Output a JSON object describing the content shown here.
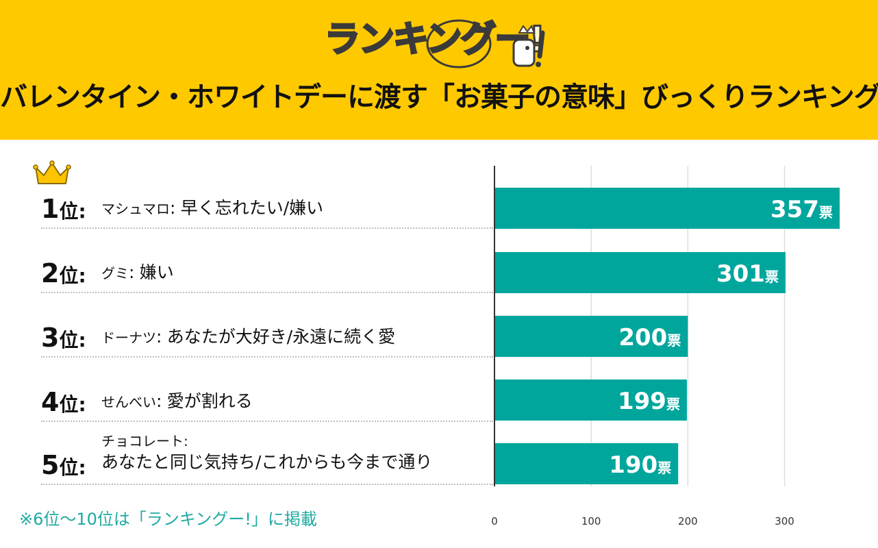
{
  "header": {
    "logo_text": "ランキングー!",
    "title": "バレンタイン・ホワイトデーに渡す「お菓子の意味」びっくりランキング"
  },
  "ranks": [
    {
      "rank": "1",
      "suffix": "位:",
      "name": "マシュマロ",
      "colon": ":",
      "meaning": "早く忘れたい/嫌い",
      "votes_label": "357",
      "unit": "票"
    },
    {
      "rank": "2",
      "suffix": "位:",
      "name": "グミ",
      "colon": ":",
      "meaning": "嫌い",
      "votes_label": "301",
      "unit": "票"
    },
    {
      "rank": "3",
      "suffix": "位:",
      "name": "ドーナツ",
      "colon": ":",
      "meaning": "あなたが大好き/永遠に続く愛",
      "votes_label": "200",
      "unit": "票"
    },
    {
      "rank": "4",
      "suffix": "位:",
      "name": "せんべい",
      "colon": ":",
      "meaning": "愛が割れる",
      "votes_label": "199",
      "unit": "票"
    },
    {
      "rank": "5",
      "suffix": "位:",
      "name": "チョコレート",
      "colon": ":",
      "meaning": "あなたと同じ気持ち/これからも今まで通り",
      "votes_label": "190",
      "unit": "票"
    }
  ],
  "footnote": "※6位〜10位は「ランキングー!」に掲載",
  "chart_data": {
    "type": "bar",
    "orientation": "horizontal",
    "categories": [
      "マシュマロ",
      "グミ",
      "ドーナツ",
      "せんべい",
      "チョコレート"
    ],
    "values": [
      357,
      301,
      200,
      199,
      190
    ],
    "xlim": [
      0,
      357
    ],
    "xticks": [
      "0",
      "100",
      "200",
      "300"
    ],
    "grid": true,
    "bar_color": "#00A69C"
  },
  "colors": {
    "header_bg": "#FFC900",
    "bar": "#00A69C",
    "footnote": "#1FA9A2"
  },
  "icons": [
    "crown-icon",
    "chicken-mascot-icon"
  ]
}
